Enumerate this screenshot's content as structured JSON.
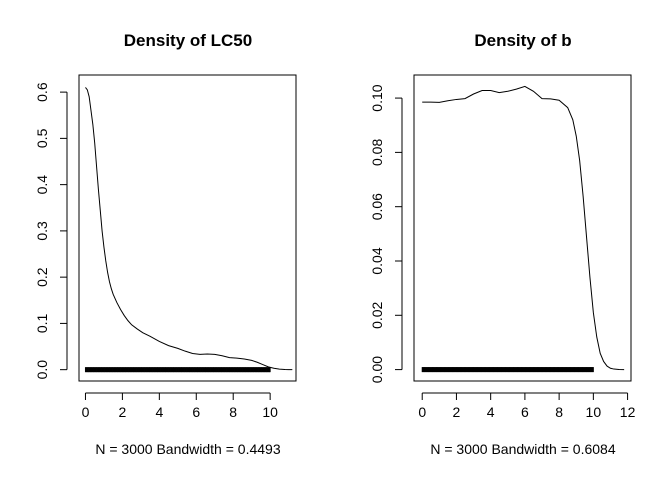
{
  "chart_data": [
    {
      "type": "line",
      "title": "Density of LC50",
      "xlabel": "N = 3000   Bandwidth = 0.4493",
      "ylabel": "",
      "xlim": [
        -0.35,
        11.4
      ],
      "ylim": [
        -0.0245,
        0.637
      ],
      "xticks": [
        0,
        2,
        4,
        6,
        8,
        10
      ],
      "yticks": [
        0.0,
        0.1,
        0.2,
        0.3,
        0.4,
        0.5,
        0.6
      ],
      "ytick_labels": [
        "0.0",
        "0.1",
        "0.2",
        "0.3",
        "0.4",
        "0.5",
        "0.6"
      ],
      "grid": false,
      "series": [
        {
          "x": [
            0.0,
            0.1,
            0.2,
            0.3,
            0.4,
            0.5,
            0.6,
            0.7,
            0.8,
            0.9,
            1.0,
            1.1,
            1.2,
            1.3,
            1.4,
            1.5,
            1.7,
            1.9,
            2.1,
            2.3,
            2.5,
            2.8,
            3.1,
            3.5,
            4.0,
            4.5,
            5.0,
            5.4,
            5.8,
            6.2,
            6.6,
            7.0,
            7.4,
            7.8,
            8.2,
            8.6,
            9.0,
            9.3,
            9.6,
            9.9,
            10.2,
            10.5,
            10.8,
            11.0,
            11.2
          ],
          "values": [
            0.61,
            0.605,
            0.59,
            0.56,
            0.53,
            0.49,
            0.44,
            0.39,
            0.345,
            0.3,
            0.265,
            0.235,
            0.21,
            0.19,
            0.175,
            0.163,
            0.145,
            0.13,
            0.117,
            0.106,
            0.097,
            0.088,
            0.08,
            0.072,
            0.061,
            0.052,
            0.046,
            0.04,
            0.035,
            0.033,
            0.034,
            0.033,
            0.03,
            0.026,
            0.025,
            0.023,
            0.02,
            0.016,
            0.011,
            0.006,
            0.003,
            0.0012,
            0.0004,
            0.0001,
            0.0
          ]
        }
      ],
      "rug": {
        "from": 0.0,
        "to": 10.0,
        "y": 0.0
      }
    },
    {
      "type": "line",
      "title": "Density of b",
      "xlabel": "N = 3000   Bandwidth = 0.6084",
      "ylabel": "",
      "xlim": [
        -0.48,
        12.2
      ],
      "ylim": [
        -0.0042,
        0.1085
      ],
      "xticks": [
        0,
        2,
        4,
        6,
        8,
        10,
        12
      ],
      "yticks": [
        0.0,
        0.02,
        0.04,
        0.06,
        0.08,
        0.1
      ],
      "ytick_labels": [
        "0.00",
        "0.02",
        "0.04",
        "0.06",
        "0.08",
        "0.10"
      ],
      "grid": false,
      "series": [
        {
          "x": [
            0.0,
            0.5,
            1.0,
            1.5,
            2.0,
            2.5,
            3.0,
            3.5,
            4.0,
            4.5,
            5.0,
            5.5,
            6.0,
            6.5,
            7.0,
            7.5,
            8.0,
            8.5,
            8.8,
            9.0,
            9.2,
            9.4,
            9.6,
            9.8,
            10.0,
            10.2,
            10.4,
            10.6,
            10.8,
            11.0,
            11.2,
            11.5,
            11.8
          ],
          "values": [
            0.0985,
            0.0985,
            0.0984,
            0.099,
            0.0995,
            0.0998,
            0.1015,
            0.1028,
            0.1028,
            0.102,
            0.1025,
            0.1033,
            0.1043,
            0.1025,
            0.0998,
            0.0997,
            0.0992,
            0.0965,
            0.092,
            0.086,
            0.077,
            0.064,
            0.049,
            0.034,
            0.021,
            0.012,
            0.006,
            0.003,
            0.0013,
            0.0005,
            0.0002,
            5e-05,
            0.0
          ]
        }
      ],
      "rug": {
        "from": 0.0,
        "to": 10.0,
        "y": 0.0
      }
    }
  ]
}
